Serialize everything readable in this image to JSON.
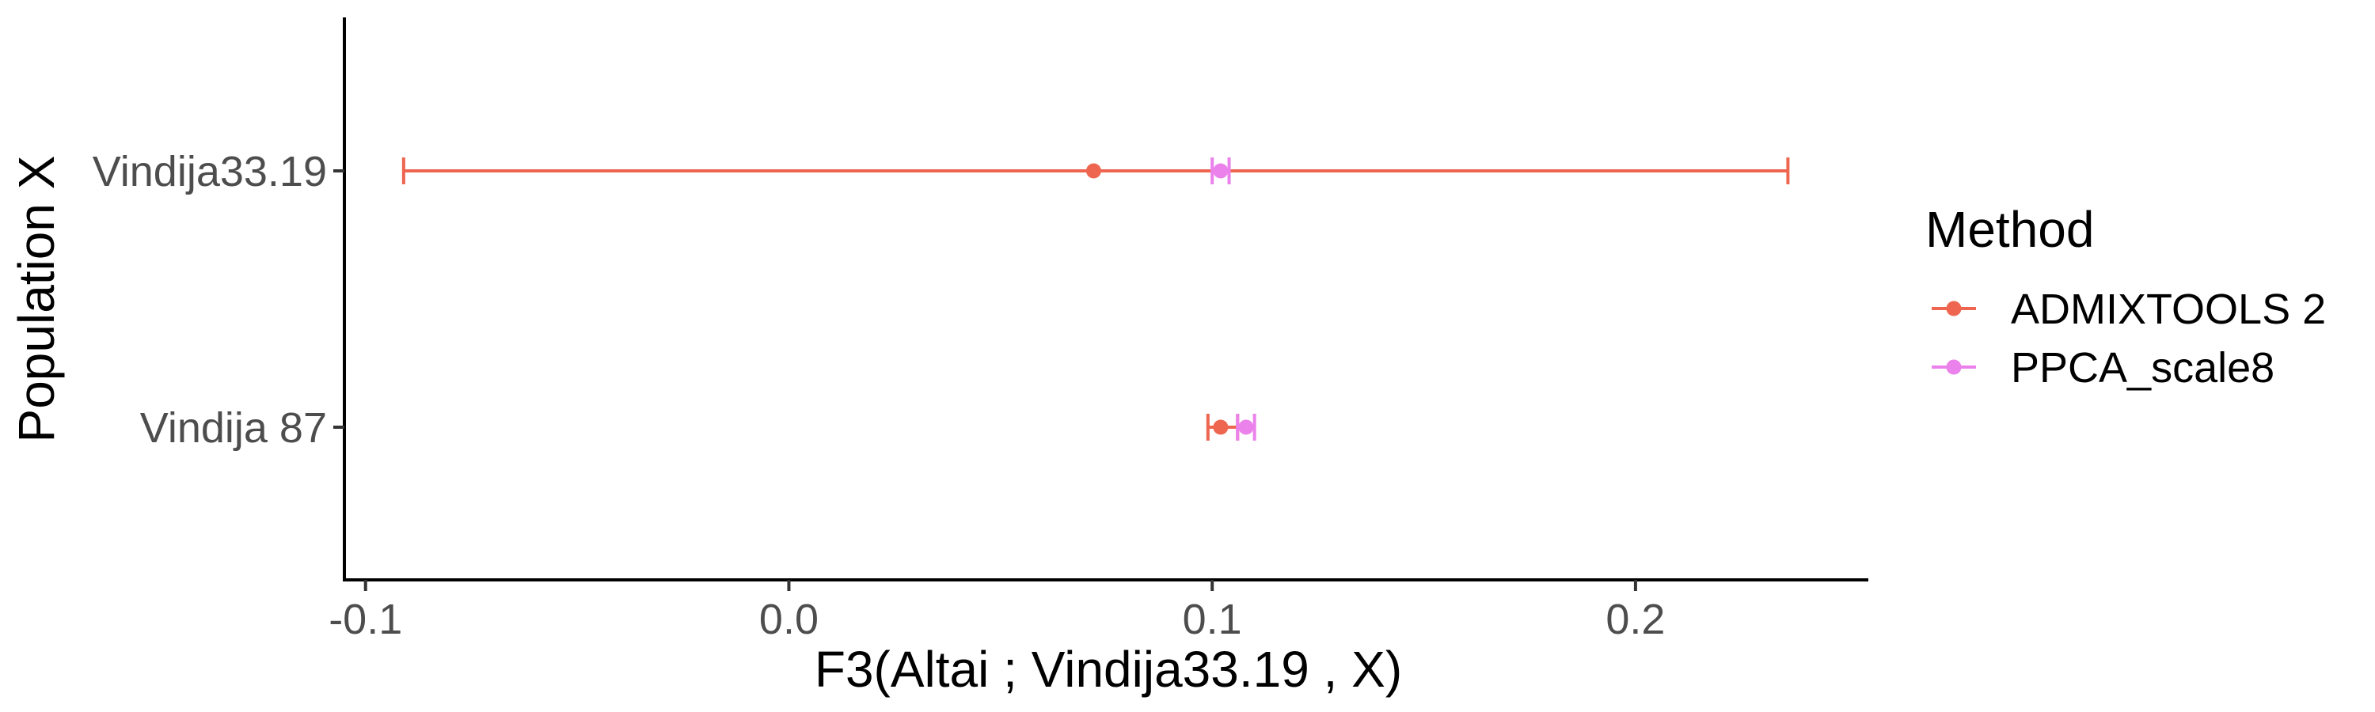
{
  "chart_data": {
    "type": "errorbar",
    "xlabel": "F3(Altai ; Vindija33.19 , X)",
    "ylabel": "Population X",
    "xlim": [
      -0.105,
      0.255
    ],
    "x_ticks": [
      -0.1,
      0.0,
      0.1,
      0.2
    ],
    "x_tick_labels": [
      "-0.1",
      "0.0",
      "0.1",
      "0.2"
    ],
    "categories": [
      "Vindija33.19",
      "Vindija 87"
    ],
    "grid": false,
    "legend": {
      "title": "Method",
      "position": "right"
    },
    "series": [
      {
        "name": "ADMIXTOOLS 2",
        "color": "#EE6650",
        "points": [
          {
            "category": "Vindija33.19",
            "x": 0.072,
            "lower": -0.091,
            "upper": 0.236
          },
          {
            "category": "Vindija 87",
            "x": 0.102,
            "lower": 0.099,
            "upper": 0.106
          }
        ]
      },
      {
        "name": "PPCA_scale8",
        "color": "#EB82EB",
        "points": [
          {
            "category": "Vindija33.19",
            "x": 0.102,
            "lower": 0.1,
            "upper": 0.104
          },
          {
            "category": "Vindija 87",
            "x": 0.108,
            "lower": 0.106,
            "upper": 0.11
          }
        ]
      }
    ]
  }
}
